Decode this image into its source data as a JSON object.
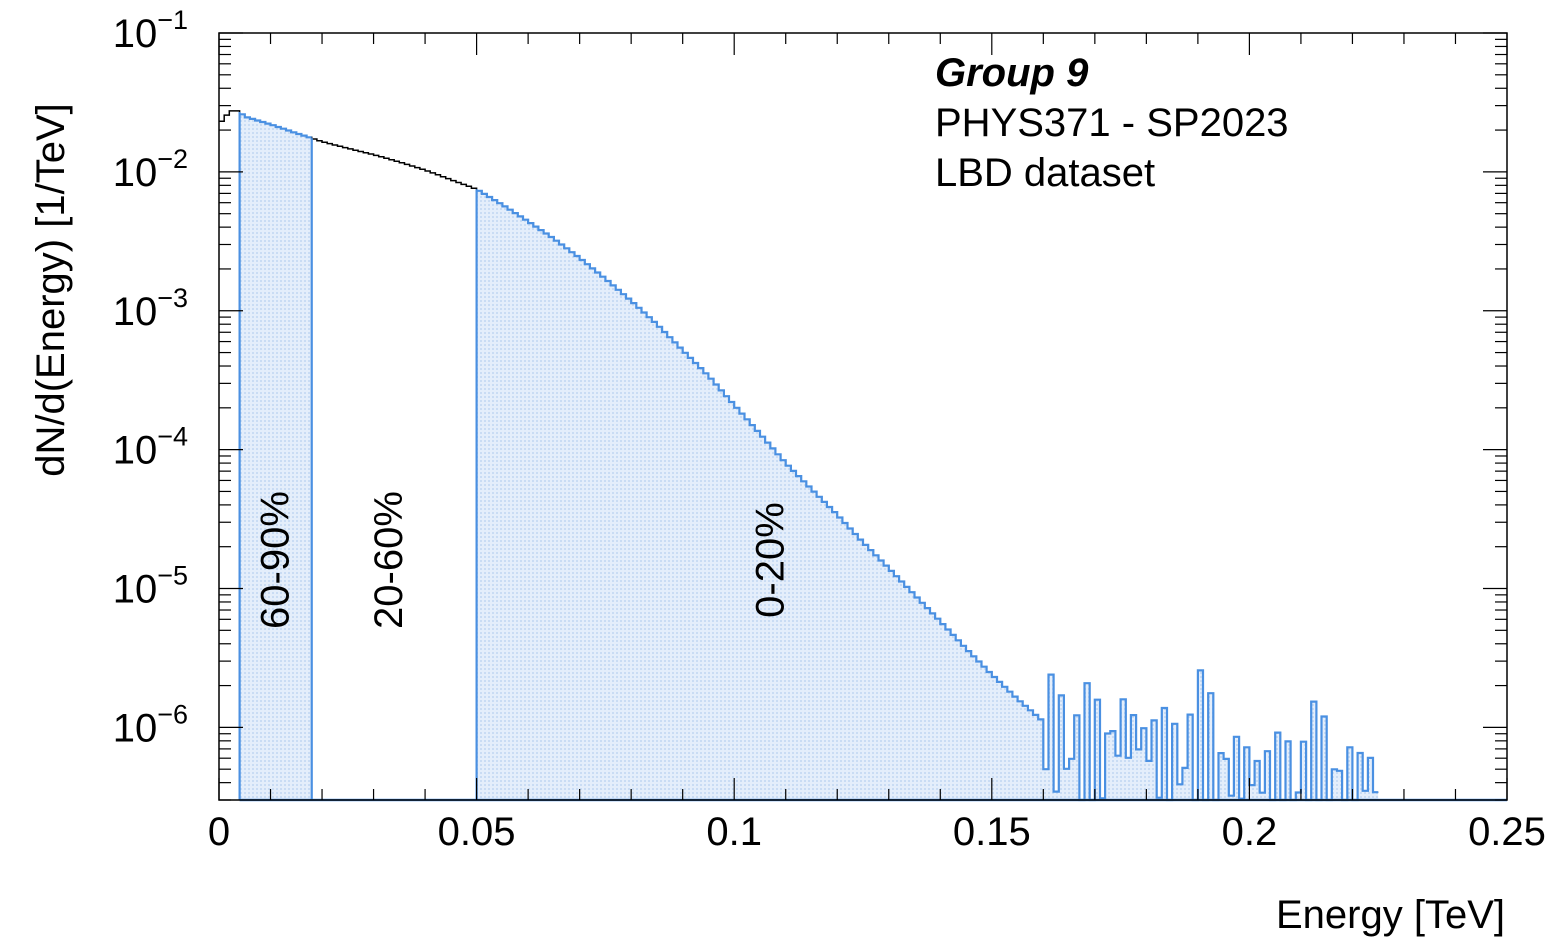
{
  "chart_data": {
    "type": "histogram",
    "title": "",
    "xlabel": "Energy [TeV]",
    "ylabel": "dN/d(Energy) [1/TeV]",
    "xlim": [
      0,
      0.25
    ],
    "ylim": [
      3e-07,
      0.1
    ],
    "yscale": "log",
    "grid": false,
    "x_ticks": [
      "0",
      "0.05",
      "0.1",
      "0.15",
      "0.2",
      "0.25"
    ],
    "x_tick_values": [
      0,
      0.05,
      0.1,
      0.15,
      0.2,
      0.25
    ],
    "y_ticks": [
      {
        "base": "10",
        "exp": "−1",
        "value": 0.1
      },
      {
        "base": "10",
        "exp": "−2",
        "value": 0.01
      },
      {
        "base": "10",
        "exp": "−3",
        "value": 0.001
      },
      {
        "base": "10",
        "exp": "−4",
        "value": 0.0001
      },
      {
        "base": "10",
        "exp": "−5",
        "value": 1e-05
      },
      {
        "base": "10",
        "exp": "−6",
        "value": 1e-06
      }
    ],
    "annotations": {
      "group": "Group 9",
      "course": "PHYS371 - SP2023",
      "dataset": "LBD dataset"
    },
    "bands": [
      {
        "label": "60-90%",
        "x_range": [
          0.004,
          0.018
        ],
        "label_x": 0.011,
        "shaded": true
      },
      {
        "label": "20-60%",
        "x_range": [
          0.018,
          0.05
        ],
        "label_x": 0.033,
        "shaded": false
      },
      {
        "label": "0-20%",
        "x_range": [
          0.05,
          0.25
        ],
        "label_x": 0.107,
        "shaded": true
      }
    ],
    "series": [
      {
        "x": [
          0.0,
          0.002,
          0.003,
          0.004,
          0.005,
          0.01,
          0.015,
          0.018,
          0.02,
          0.025,
          0.03,
          0.035,
          0.04,
          0.045,
          0.05,
          0.055,
          0.06,
          0.065,
          0.07,
          0.075,
          0.08,
          0.085,
          0.09,
          0.095,
          0.1,
          0.105,
          0.11,
          0.115,
          0.12,
          0.125,
          0.13,
          0.135,
          0.14,
          0.145,
          0.15,
          0.155,
          0.16,
          0.165,
          0.17,
          0.175,
          0.18,
          0.185,
          0.19,
          0.195,
          0.2,
          0.205,
          0.21,
          0.215,
          0.22,
          0.224,
          0.225
        ],
        "y": [
          0.022,
          0.027,
          0.028,
          0.027,
          0.025,
          0.022,
          0.019,
          0.0175,
          0.0165,
          0.0148,
          0.0133,
          0.0118,
          0.0103,
          0.0088,
          0.0075,
          0.0058,
          0.0044,
          0.0033,
          0.0024,
          0.0017,
          0.00118,
          0.0008,
          0.00052,
          0.00034,
          0.00021,
          0.00013,
          8e-05,
          5.2e-05,
          3.4e-05,
          2.15e-05,
          1.4e-05,
          9e-06,
          5.8e-06,
          3.7e-06,
          2.4e-06,
          1.6e-06,
          1.1e-06,
          7e-07,
          5e-07,
          1e-06,
          8e-07,
          5e-07,
          7e-07,
          5e-07,
          5e-07,
          4e-07,
          4e-07,
          4e-07,
          4e-07,
          5e-07,
          4e-07
        ]
      }
    ],
    "colors": {
      "fill": "#d6e6f8",
      "line": "#4a90e2",
      "black": "#000000"
    }
  }
}
